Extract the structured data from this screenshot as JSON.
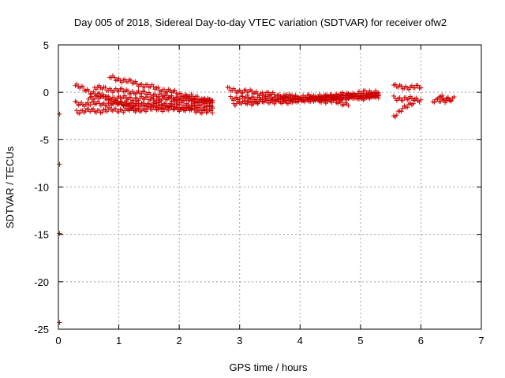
{
  "chart_data": {
    "type": "scatter",
    "title": "Day 005 of 2018, Sidereal Day-to-day VTEC variation (SDTVAR) for receiver ofw2",
    "xlabel": "GPS time / hours",
    "ylabel": "SDTVAR / TECUs",
    "xlim": [
      0,
      7
    ],
    "ylim": [
      -25,
      5
    ],
    "xticks": [
      "0",
      "1",
      "2",
      "3",
      "4",
      "5",
      "6",
      "7"
    ],
    "yticks": [
      "5",
      "0",
      "-5",
      "-10",
      "-15",
      "-20",
      "-25"
    ],
    "grid": true,
    "marker": "+",
    "color": "#cc0000",
    "outliers": [
      {
        "x": 0.02,
        "y": -2.3
      },
      {
        "x": 0.02,
        "y": -7.6
      },
      {
        "x": 0.02,
        "y": -14.9
      },
      {
        "x": 0.02,
        "y": -24.3
      }
    ],
    "traces": [
      {
        "x0": 0.28,
        "x1": 1.3,
        "y0": 0.7,
        "y1": -1.9
      },
      {
        "x0": 0.28,
        "x1": 2.55,
        "y0": -1.2,
        "y1": -1.3
      },
      {
        "x0": 0.3,
        "x1": 2.55,
        "y0": -2.0,
        "y1": -1.6
      },
      {
        "x0": 0.6,
        "x1": 2.55,
        "y0": 0.5,
        "y1": -1.0
      },
      {
        "x0": 0.85,
        "x1": 2.55,
        "y0": 1.6,
        "y1": -1.0
      },
      {
        "x0": 0.5,
        "x1": 2.55,
        "y0": -0.5,
        "y1": -0.9
      },
      {
        "x0": 1.0,
        "x1": 2.55,
        "y0": -1.1,
        "y1": -2.1
      },
      {
        "x0": 2.8,
        "x1": 4.8,
        "y0": 0.3,
        "y1": -1.2
      },
      {
        "x0": 2.85,
        "x1": 5.3,
        "y0": -0.6,
        "y1": -0.4
      },
      {
        "x0": 2.9,
        "x1": 5.3,
        "y0": -1.2,
        "y1": -0.3
      },
      {
        "x0": 3.1,
        "x1": 5.3,
        "y0": -0.9,
        "y1": -0.5
      },
      {
        "x0": 3.7,
        "x1": 5.3,
        "y0": -1.0,
        "y1": -0.2
      },
      {
        "x0": 4.2,
        "x1": 5.3,
        "y0": -0.6,
        "y1": 0.1
      },
      {
        "x0": 5.55,
        "x1": 6.0,
        "y0": 0.6,
        "y1": 0.5
      },
      {
        "x0": 5.55,
        "x1": 6.0,
        "y0": -0.6,
        "y1": -0.8
      },
      {
        "x0": 5.55,
        "x1": 5.9,
        "y0": -2.5,
        "y1": -0.9
      },
      {
        "x0": 6.2,
        "x1": 6.55,
        "y0": -1.0,
        "y1": -0.7
      },
      {
        "x0": 6.3,
        "x1": 6.5,
        "y0": -0.4,
        "y1": -0.7
      }
    ]
  }
}
